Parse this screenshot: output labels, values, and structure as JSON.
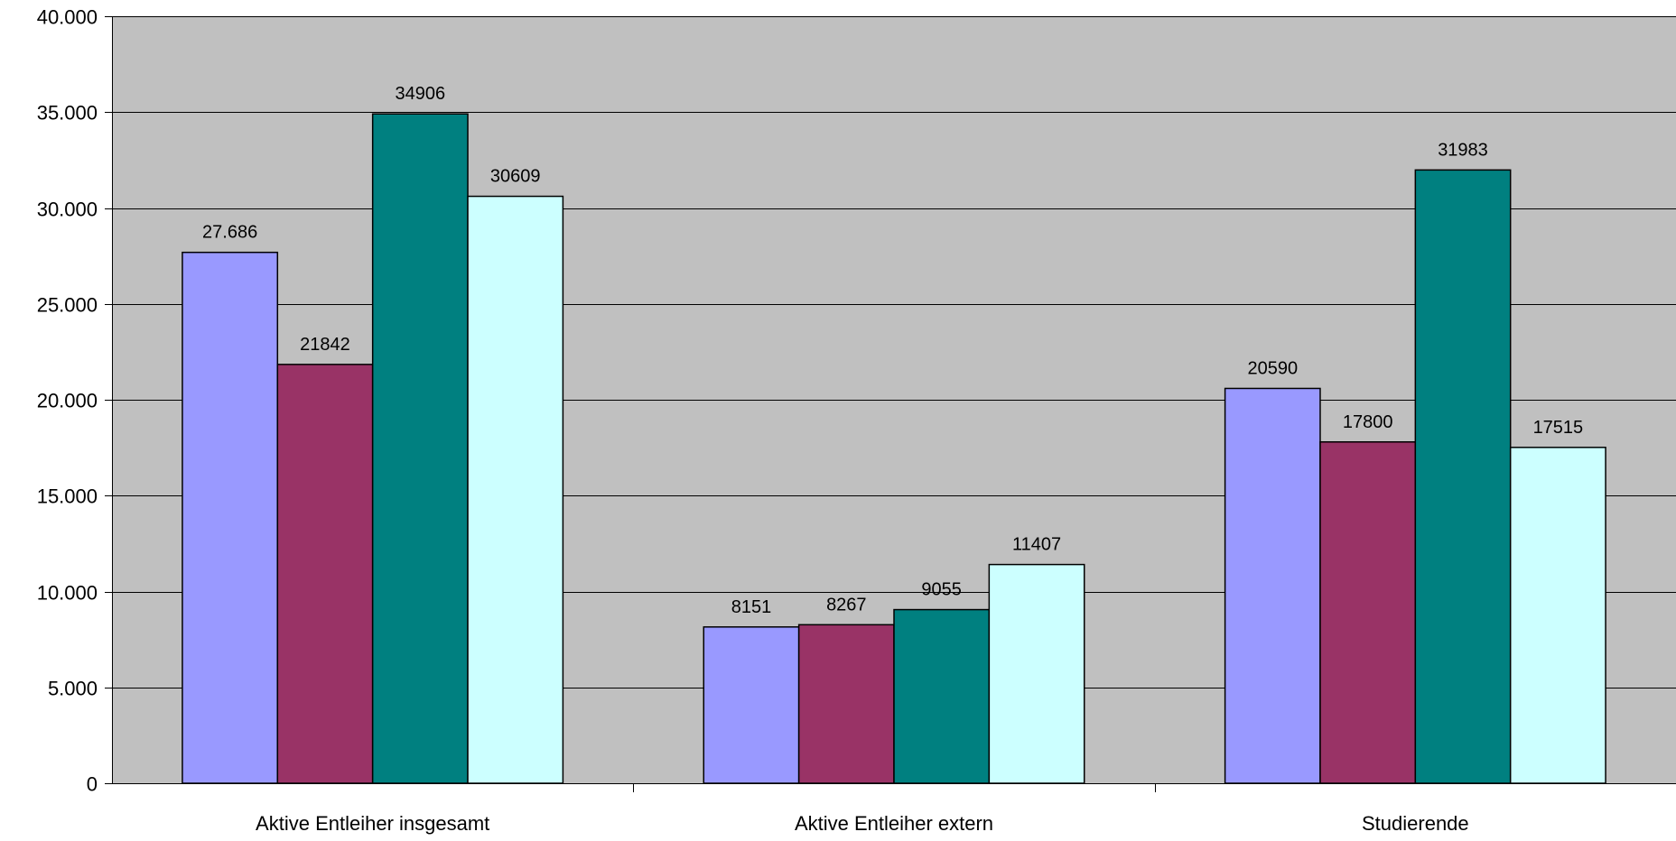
{
  "chart_data": {
    "type": "bar",
    "categories": [
      "Aktive Entleiher insgesamt",
      "Aktive Entleiher extern",
      "Studierende"
    ],
    "series": [
      {
        "color": "#9999FF",
        "values": [
          27686,
          8151,
          20590
        ],
        "labels": [
          "27.686",
          "8151",
          "20590"
        ]
      },
      {
        "color": "#993366",
        "values": [
          21842,
          8267,
          17800
        ],
        "labels": [
          "21842",
          "8267",
          "17800"
        ]
      },
      {
        "color": "#008080",
        "values": [
          34906,
          9055,
          31983
        ],
        "labels": [
          "34906",
          "9055",
          "31983"
        ]
      },
      {
        "color": "#CCFFFF",
        "values": [
          30609,
          11407,
          17515
        ],
        "labels": [
          "30609",
          "11407",
          "17515"
        ]
      }
    ],
    "ylim": [
      0,
      40000
    ],
    "yticks": [
      0,
      5000,
      10000,
      15000,
      20000,
      25000,
      30000,
      35000,
      40000
    ],
    "ytick_labels": [
      "0",
      "5.000",
      "10.000",
      "15.000",
      "20.000",
      "25.000",
      "30.000",
      "35.000",
      "40.000"
    ],
    "grid": true,
    "plot_background": "#C0C0C0",
    "title": "",
    "xlabel": "",
    "ylabel": ""
  }
}
